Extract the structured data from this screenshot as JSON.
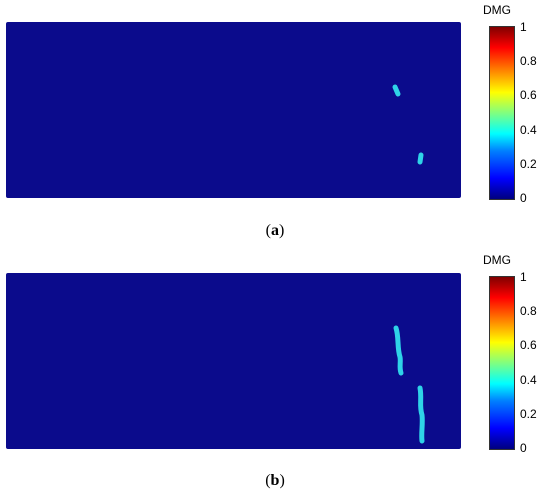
{
  "colorbar": {
    "title": "DMG",
    "ticks": [
      "1",
      "0.8",
      "0.6",
      "0.4",
      "0.2",
      "0"
    ]
  },
  "panels": [
    {
      "letter": "a",
      "caption_open": "(",
      "caption_close": ")",
      "background_color": "#0b0b8c",
      "crack_color": "#2fd3e8"
    },
    {
      "letter": "b",
      "caption_open": "(",
      "caption_close": ")",
      "background_color": "#0b0b8c",
      "crack_color": "#2fd3e8"
    }
  ]
}
